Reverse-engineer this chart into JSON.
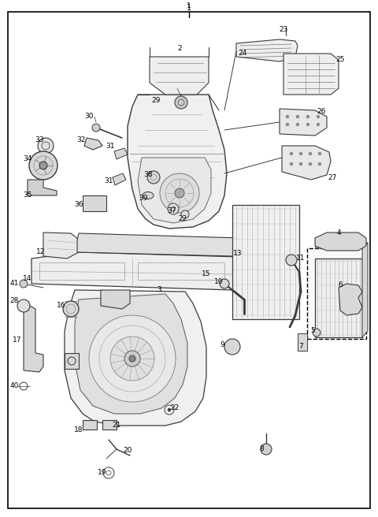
{
  "bg_color": "#ffffff",
  "line_color": "#3a3a3a",
  "text_color": "#000000",
  "fig_width": 4.8,
  "fig_height": 6.56,
  "dpi": 100
}
